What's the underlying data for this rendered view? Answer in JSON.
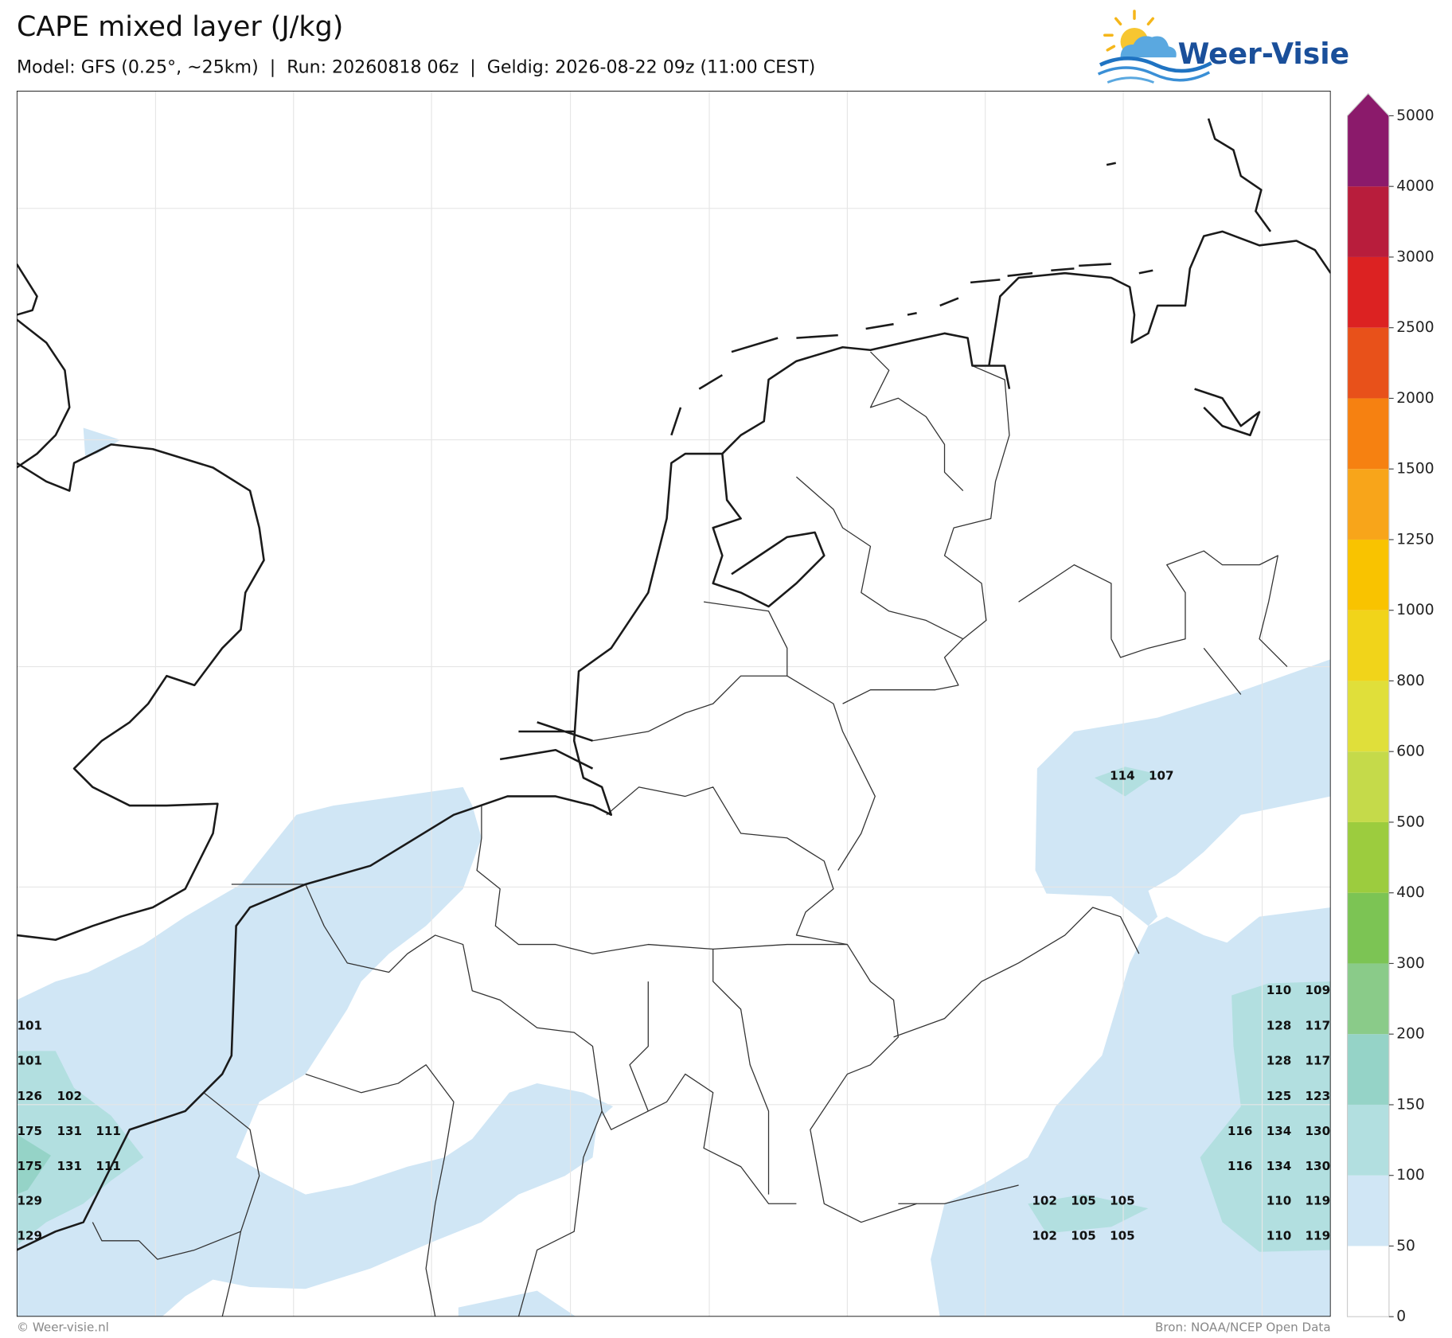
{
  "header": {
    "title": "CAPE mixed layer (J/kg)",
    "subtitle": "Model: GFS (0.25°, ~25km)  |  Run: 20260818 06z  |  Geldig: 2026-08-22 09z (11:00 CEST)",
    "logo": "Weer-Visie"
  },
  "map": {
    "point_values": [
      101,
      101,
      126,
      102,
      175,
      131,
      111,
      175,
      131,
      111,
      129,
      129,
      114,
      107,
      102,
      105,
      105,
      102,
      105,
      105,
      110,
      109,
      128,
      117,
      128,
      117,
      125,
      123,
      116,
      134,
      130,
      116,
      134,
      130,
      110,
      119,
      110,
      119
    ]
  },
  "colorbar": {
    "ticks": [
      0,
      50,
      100,
      150,
      200,
      300,
      400,
      500,
      600,
      800,
      1000,
      1250,
      1500,
      2000,
      2500,
      3000,
      4000,
      5000
    ],
    "colors": [
      "#ffffff",
      "#d0e6f5",
      "#b2dfe0",
      "#95d3c7",
      "#8acb89",
      "#7cc454",
      "#9ccc3e",
      "#c5da4a",
      "#e0df3a",
      "#f1d41a",
      "#f9c300",
      "#f8a51a",
      "#f68111",
      "#e8511a",
      "#dc2222",
      "#b81d3c",
      "#8b1a6b"
    ],
    "extend": "max"
  },
  "footer": {
    "left": "© Weer-visie.nl",
    "right": "Bron: NOAA/NCEP Open Data"
  }
}
